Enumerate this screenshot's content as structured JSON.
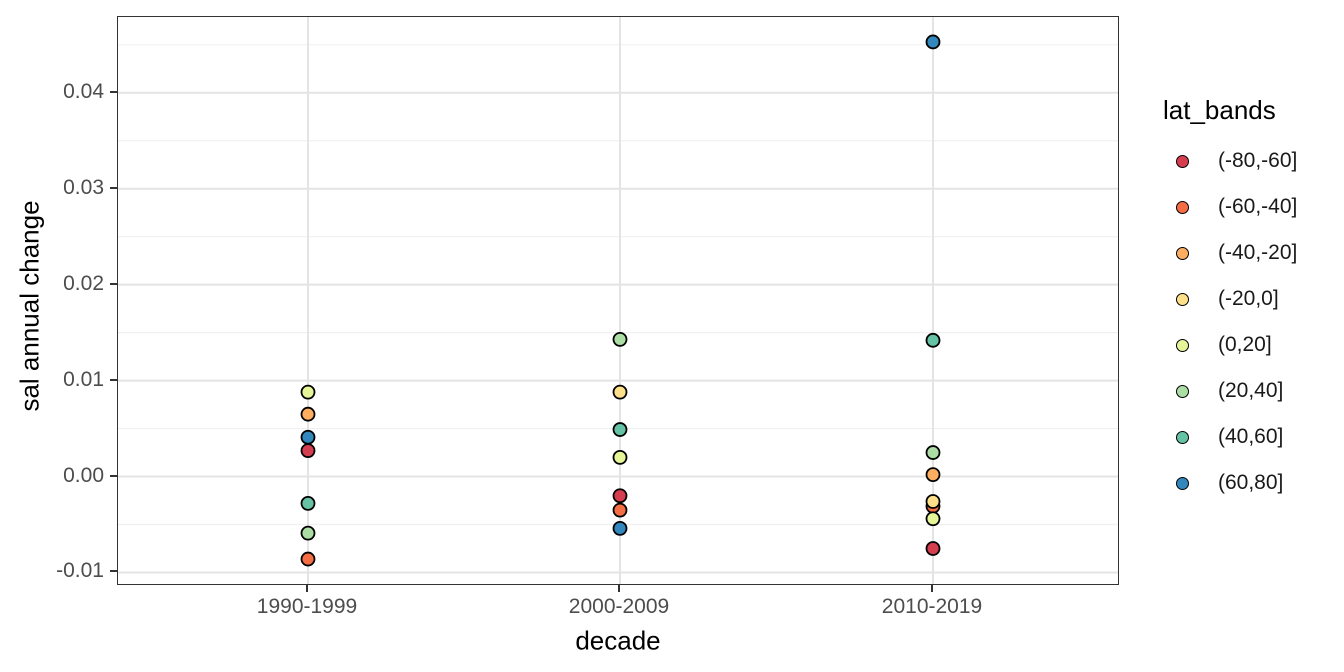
{
  "chart_data": {
    "type": "scatter",
    "title": "",
    "xlabel": "decade",
    "ylabel": "sal annual change",
    "categories": [
      "1990-1999",
      "2000-2009",
      "2010-2019"
    ],
    "legend_title": "lat_bands",
    "legend_position": "right",
    "grid": true,
    "ylim": [
      -0.0112,
      0.0479
    ],
    "yticks": [
      -0.01,
      0.0,
      0.01,
      0.02,
      0.03,
      0.04
    ],
    "ytick_labels": [
      "-0.01",
      "0.00",
      "0.01",
      "0.02",
      "0.03",
      "0.04"
    ],
    "yticks_minor": [
      -0.005,
      0.005,
      0.015,
      0.025,
      0.035,
      0.045
    ],
    "series": [
      {
        "name": "(-80,-60]",
        "color": "#D53E4F",
        "values": [
          0.0027,
          -0.002,
          -0.0075
        ]
      },
      {
        "name": "(-60,-40]",
        "color": "#F46D43",
        "values": [
          -0.0086,
          -0.0035,
          -0.0031
        ]
      },
      {
        "name": "(-40,-20]",
        "color": "#FDAE61",
        "values": [
          0.0065,
          null,
          0.0002
        ]
      },
      {
        "name": "(-20,0]",
        "color": "#FEE08B",
        "values": [
          null,
          0.0088,
          -0.0026
        ]
      },
      {
        "name": "(0,20]",
        "color": "#E6F598",
        "values": [
          0.0088,
          0.002,
          -0.0044
        ]
      },
      {
        "name": "(20,40]",
        "color": "#ABDDA4",
        "values": [
          -0.0059,
          0.0143,
          0.0025
        ]
      },
      {
        "name": "(40,60]",
        "color": "#66C2A5",
        "values": [
          -0.0028,
          0.0049,
          0.0142
        ]
      },
      {
        "name": "(60,80]",
        "color": "#3288BD",
        "values": [
          0.0041,
          -0.0054,
          0.0453
        ]
      }
    ],
    "colors": {
      "background": "#FFFFFF",
      "panel_border": "#333333",
      "grid_major": "#E4E4E4",
      "grid_minor": "#F0F0F0",
      "tick_text": "#4D4D4D",
      "point_stroke": "#000000"
    }
  }
}
